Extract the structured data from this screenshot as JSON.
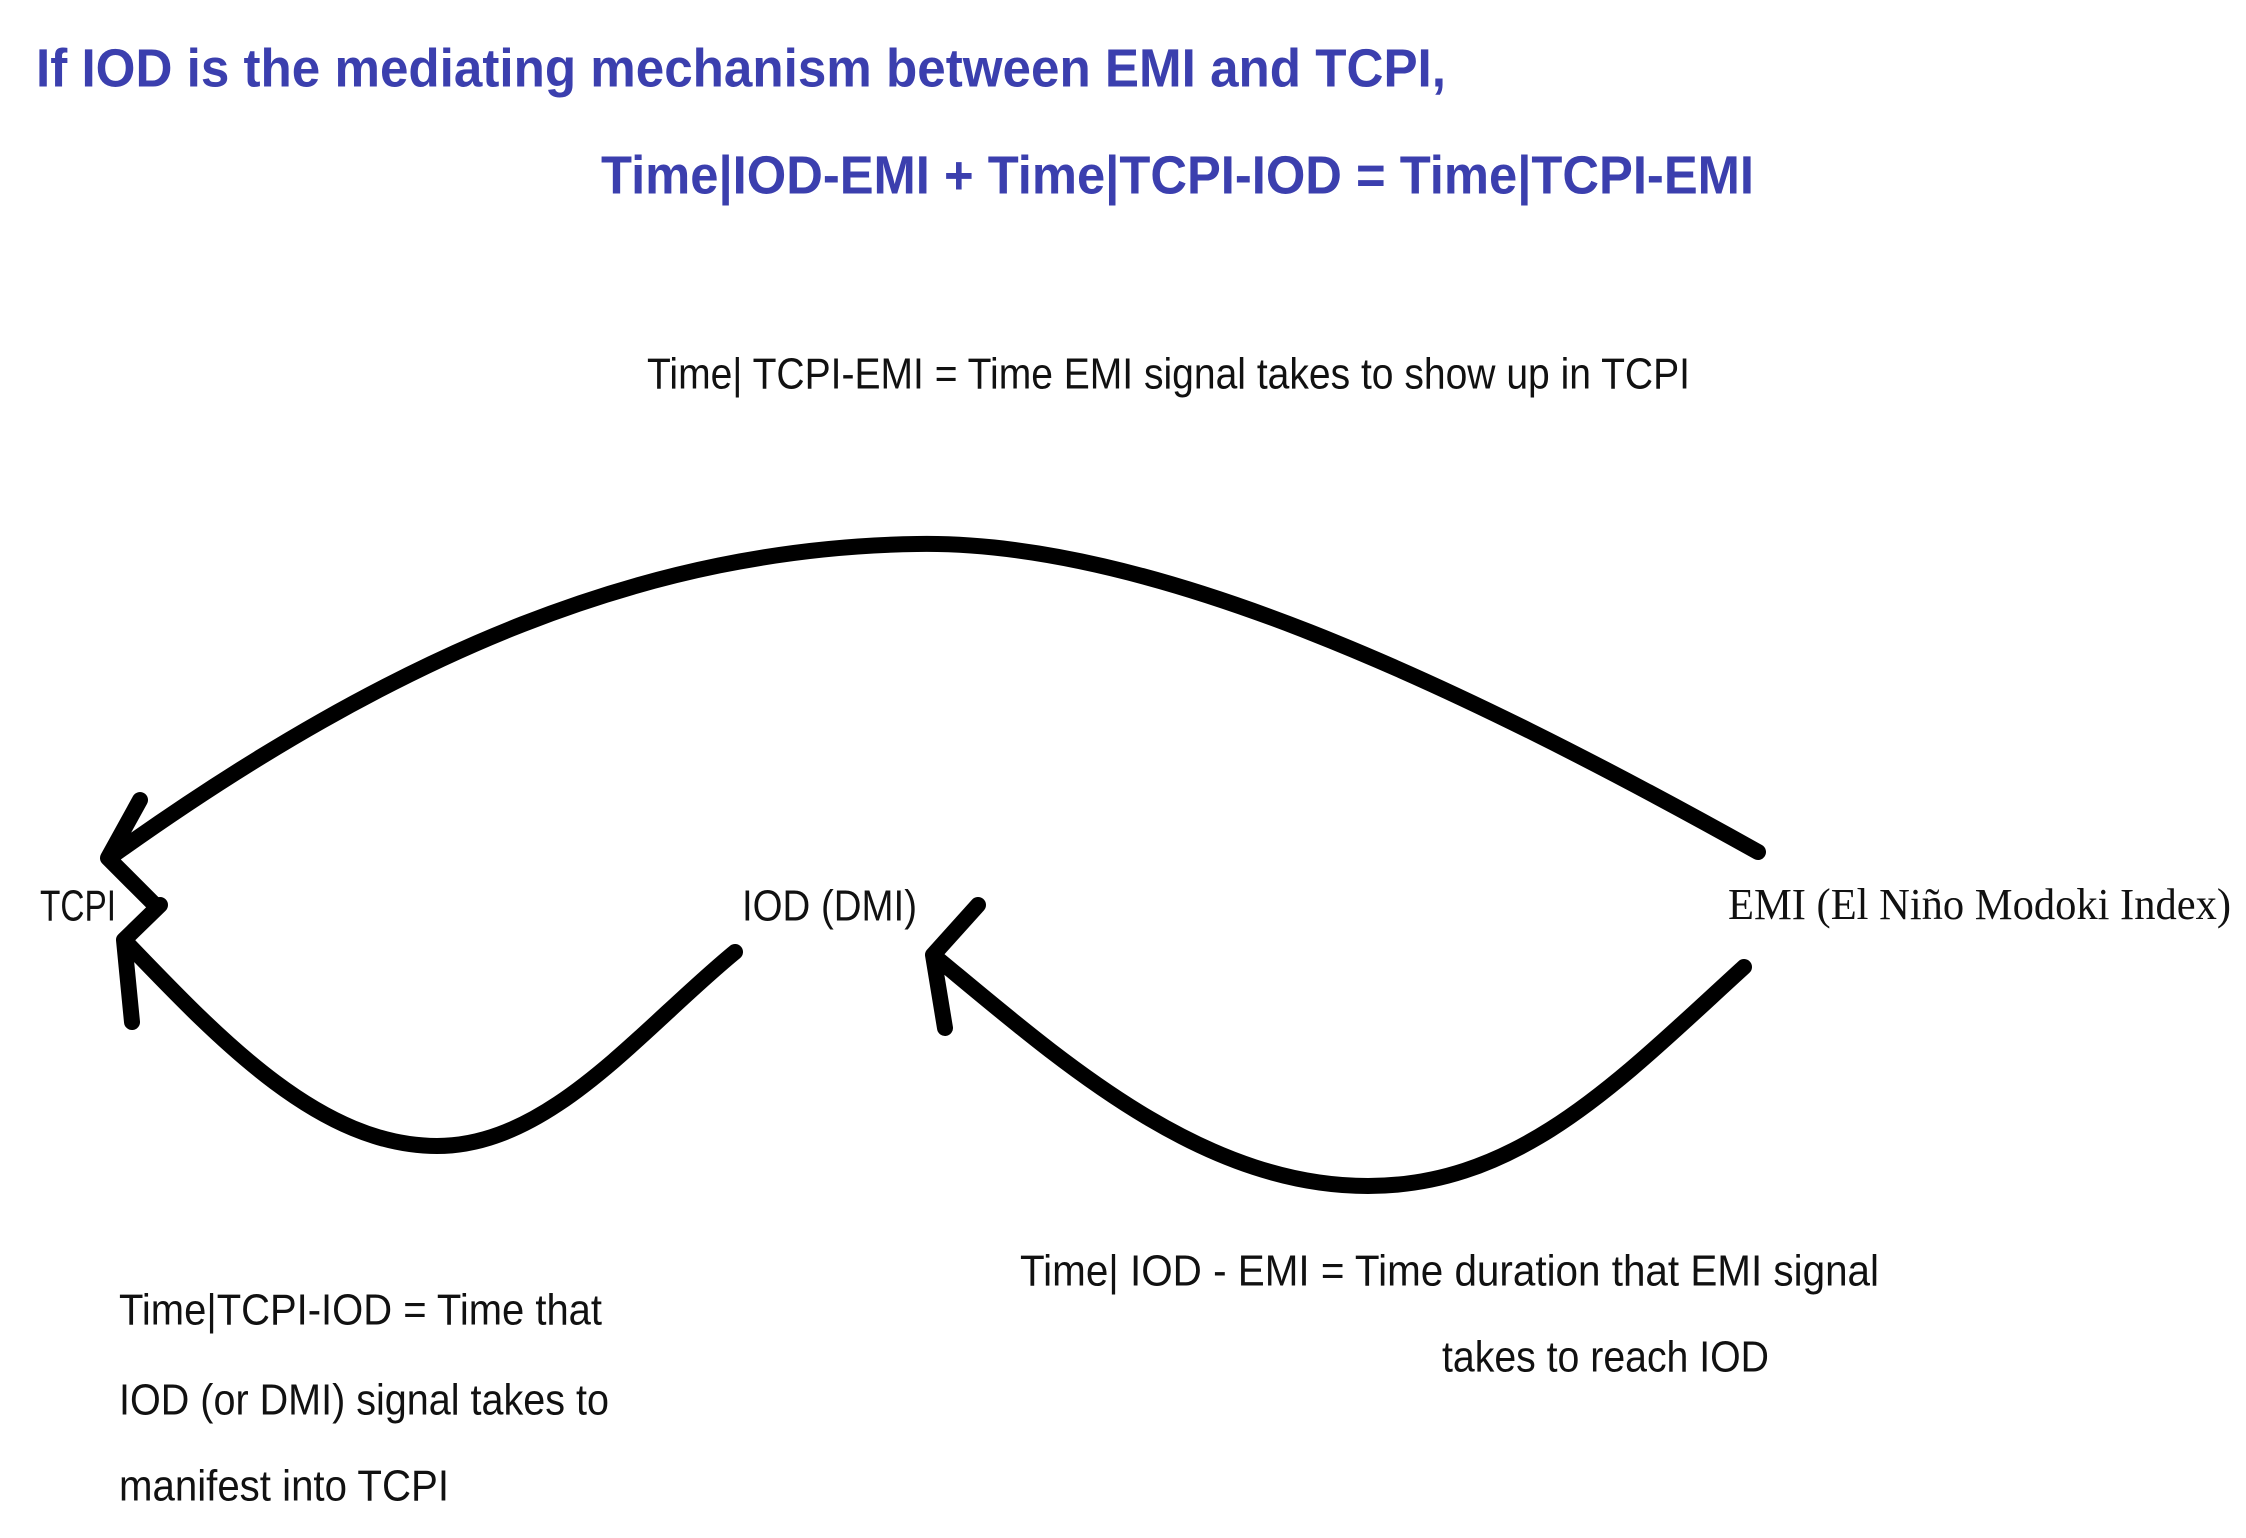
{
  "header": {
    "title_line_1": "If IOD is the mediating mechanism between EMI and TCPI,",
    "title_line_2": "Time|IOD-EMI + Time|TCPI-IOD = Time|TCPI-EMI"
  },
  "nodes": [
    {
      "label": "TCPI"
    },
    {
      "label": "IOD (DMI)"
    },
    {
      "label": "EMI (El Niño Modoki Index)"
    }
  ],
  "edges": [
    {
      "label_lines": [
        "Time| TCPI-EMI = Time EMI signal takes to show up in TCPI"
      ]
    },
    {
      "label_lines": [
        "Time|TCPI-IOD = Time that",
        "IOD (or DMI) signal takes to",
        "manifest into TCPI"
      ]
    },
    {
      "label_lines": [
        "Time| IOD - EMI = Time duration that EMI signal",
        "takes to reach IOD"
      ]
    }
  ]
}
